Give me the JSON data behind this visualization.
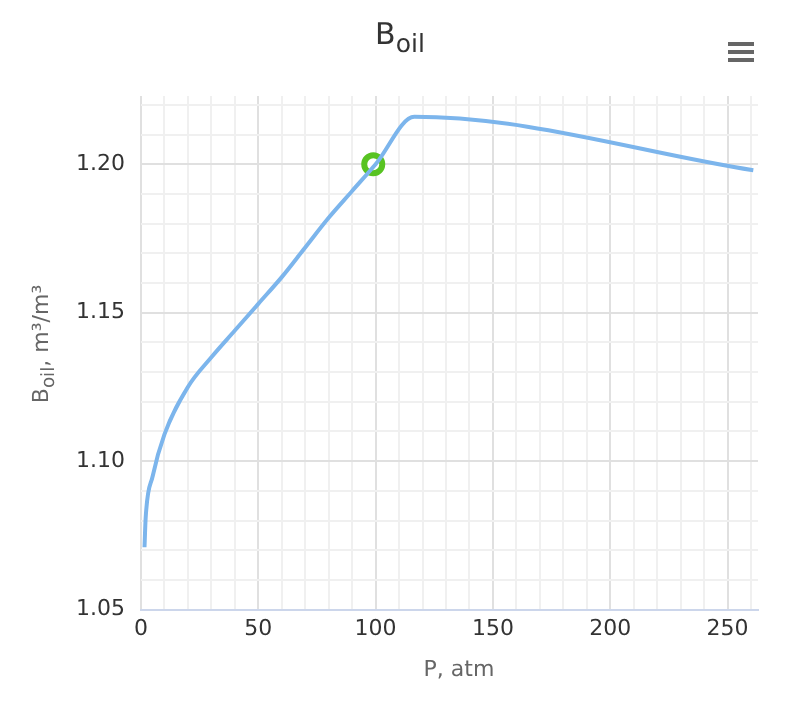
{
  "chart_data": {
    "type": "line",
    "title": "B$_{oil}$",
    "xlabel": "P, atm",
    "ylabel": "B$_{oil}$, m³/m³",
    "xlim": [
      0,
      263
    ],
    "ylim": [
      1.05,
      1.223
    ],
    "xticks": [
      0,
      {
        "value": 10,
        "label": null
      },
      {
        "value": 20,
        "label": null
      },
      {
        "value": 30,
        "label": null
      },
      {
        "value": 40,
        "label": null
      },
      50,
      {
        "value": 60,
        "label": null
      },
      {
        "value": 70,
        "label": null
      },
      {
        "value": 80,
        "label": null
      },
      {
        "value": 90,
        "label": null
      },
      100,
      {
        "value": 110,
        "label": null
      },
      {
        "value": 120,
        "label": null
      },
      {
        "value": 130,
        "label": null
      },
      {
        "value": 140,
        "label": null
      },
      150,
      {
        "value": 160,
        "label": null
      },
      {
        "value": 170,
        "label": null
      },
      {
        "value": 180,
        "label": null
      },
      {
        "value": 190,
        "label": null
      },
      200,
      {
        "value": 210,
        "label": null
      },
      {
        "value": 220,
        "label": null
      },
      {
        "value": 230,
        "label": null
      },
      {
        "value": 240,
        "label": null
      },
      250,
      {
        "value": 260,
        "label": null
      }
    ],
    "yticks": [
      {
        "value": 1.05,
        "label": "1.05"
      },
      {
        "value": 1.06,
        "label": null
      },
      {
        "value": 1.07,
        "label": null
      },
      {
        "value": 1.08,
        "label": null
      },
      {
        "value": 1.09,
        "label": null
      },
      {
        "value": 1.1,
        "label": "1.10"
      },
      {
        "value": 1.11,
        "label": null
      },
      {
        "value": 1.12,
        "label": null
      },
      {
        "value": 1.13,
        "label": null
      },
      {
        "value": 1.14,
        "label": null
      },
      {
        "value": 1.15,
        "label": "1.15"
      },
      {
        "value": 1.16,
        "label": null
      },
      {
        "value": 1.17,
        "label": null
      },
      {
        "value": 1.18,
        "label": null
      },
      {
        "value": 1.19,
        "label": null
      },
      {
        "value": 1.2,
        "label": "1.20"
      },
      {
        "value": 1.21,
        "label": null
      },
      {
        "value": 1.22,
        "label": null
      }
    ],
    "grid": true,
    "legend": false,
    "series": [
      {
        "marker": "none",
        "color": "#7cb5ec",
        "x": [
          1.5,
          2,
          5,
          10,
          20,
          30,
          40,
          50,
          60,
          70,
          80,
          90,
          100,
          116.5,
          261
        ],
        "values": [
          1.071,
          1.081,
          1.095,
          1.109,
          1.125,
          1.135,
          1.144,
          1.153,
          1.162,
          1.172,
          1.182,
          1.191,
          1.2,
          1.216,
          1.198
        ]
      },
      {
        "type": "scatter",
        "marker": "circle",
        "color": "#58c322",
        "x": [
          99
        ],
        "values": [
          1.2
        ]
      }
    ]
  }
}
